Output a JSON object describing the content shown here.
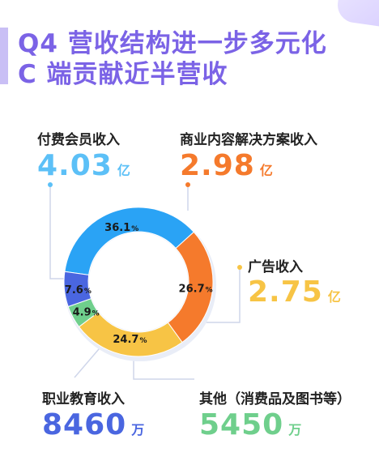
{
  "title": {
    "line1": "Q4 营收结构进一步多元化",
    "line2": "C 端贡献近半营收"
  },
  "colors": {
    "title": "#7b63e6",
    "membership": "#2aa3f5",
    "commercial": "#f57a2c",
    "ads": "#f7c445",
    "education": "#4a66e0",
    "other": "#6fcf8c"
  },
  "callouts": {
    "membership": {
      "label": "付费会员收入",
      "value": "4.03",
      "unit": "亿"
    },
    "commercial": {
      "label": "商业内容解决方案收入",
      "value": "2.98",
      "unit": "亿"
    },
    "ads": {
      "label": "广告收入",
      "value": "2.75",
      "unit": "亿"
    },
    "education": {
      "label": "职业教育收入",
      "value": "8460",
      "unit": "万"
    },
    "other": {
      "label": "其他（消费品及图书等）",
      "value": "5450",
      "unit": "万"
    }
  },
  "chart_data": {
    "type": "pie",
    "style": "donut",
    "categories": [
      "付费会员收入",
      "商业内容解决方案收入",
      "广告收入",
      "其他（消费品及图书等）",
      "职业教育收入"
    ],
    "values": [
      36.1,
      26.7,
      24.7,
      4.9,
      7.6
    ],
    "value_labels": [
      "36.1",
      "26.7",
      "24.7",
      "4.9",
      "7.6"
    ],
    "value_unit": "%"
  }
}
